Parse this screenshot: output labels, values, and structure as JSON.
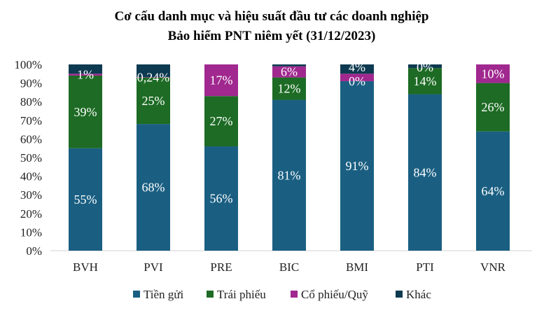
{
  "chart_data": {
    "type": "bar",
    "stacked": true,
    "title": [
      "Cơ cấu danh mục và hiệu suất đầu tư các doanh nghiệp",
      "Bảo hiểm PNT niêm yết (31/12/2023)"
    ],
    "xlabel": "",
    "ylabel": "",
    "ylim": [
      0,
      100
    ],
    "yticks": [
      "0%",
      "10%",
      "20%",
      "30%",
      "40%",
      "50%",
      "60%",
      "70%",
      "80%",
      "90%",
      "100%"
    ],
    "grid": false,
    "legend_position": "bottom",
    "categories": [
      "BVH",
      "PVI",
      "PRE",
      "BIC",
      "BMI",
      "PTI",
      "VNR"
    ],
    "series": [
      {
        "name": "Tiền gửi",
        "color": "#1a5f82",
        "values": [
          55,
          68,
          56,
          81,
          91,
          84,
          64
        ],
        "labels": [
          "55%",
          "68%",
          "56%",
          "81%",
          "91%",
          "84%",
          "64%"
        ]
      },
      {
        "name": "Trái phiếu",
        "color": "#1d6b24",
        "values": [
          39,
          25,
          27,
          12,
          0,
          14,
          26
        ],
        "labels": [
          "39%",
          "25%",
          "27%",
          "12%",
          "0%",
          "14%",
          "26%"
        ]
      },
      {
        "name": "Cổ phiếu/Quỹ",
        "color": "#a0288f",
        "values": [
          1,
          0.24,
          17,
          6,
          4,
          0,
          10
        ],
        "labels": [
          "1%",
          "0,24%",
          "17%",
          "6%",
          "4%",
          "0%",
          "10%"
        ]
      },
      {
        "name": "Khác",
        "color": "#0d3a50",
        "values": [
          5,
          6.76,
          0,
          1,
          5,
          2,
          0
        ],
        "labels": [
          null,
          null,
          null,
          null,
          null,
          null,
          null
        ]
      }
    ]
  }
}
